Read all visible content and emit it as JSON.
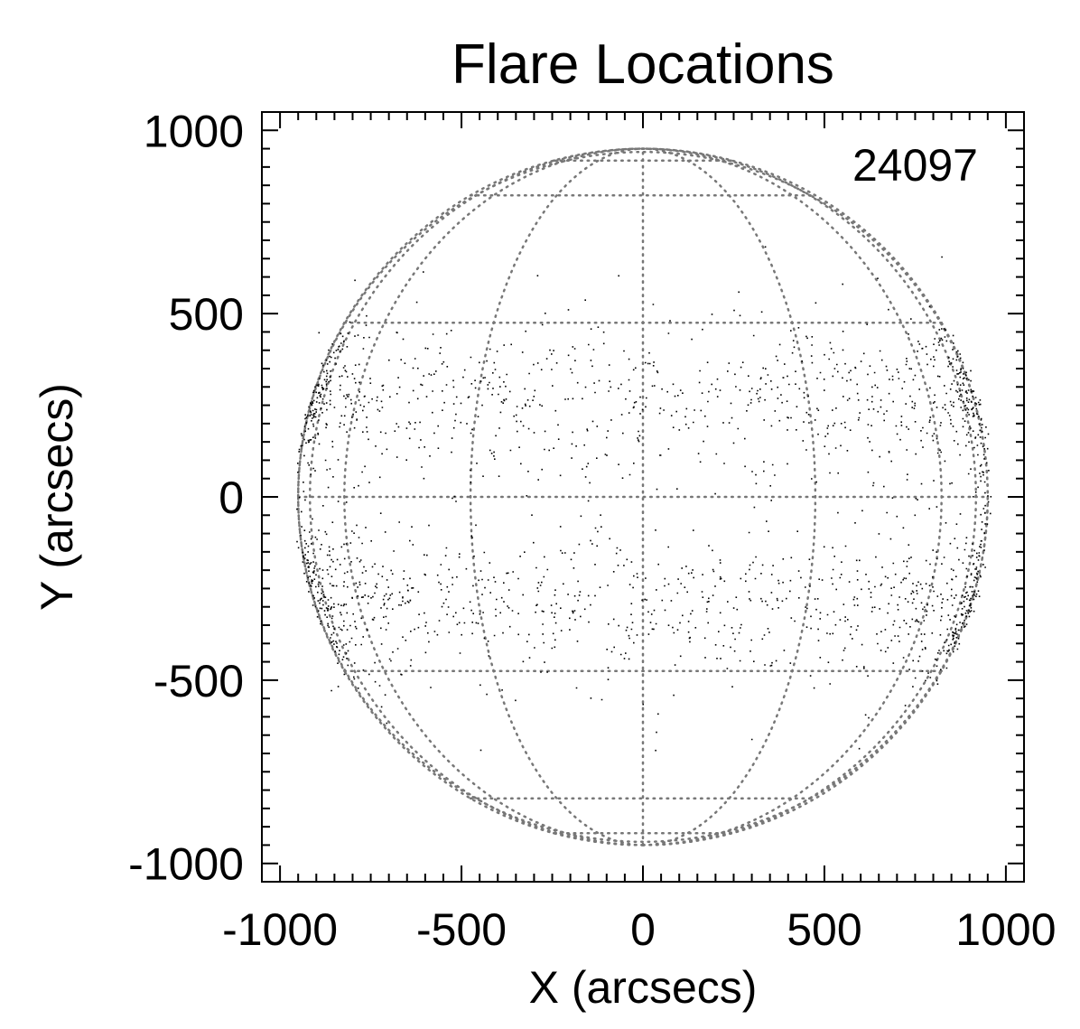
{
  "chart_data": {
    "type": "scatter",
    "title": "Flare Locations",
    "xlabel": "X (arcsecs)",
    "ylabel": "Y (arcsecs)",
    "xlim": [
      -1050,
      1050
    ],
    "ylim": [
      -1050,
      1050
    ],
    "x_ticks": [
      -1000,
      -500,
      0,
      500,
      1000
    ],
    "y_ticks": [
      -1000,
      -500,
      0,
      500,
      1000
    ],
    "x_tick_labels": [
      "-1000",
      "-500",
      "0",
      "500",
      "1000"
    ],
    "y_tick_labels": [
      "-1000",
      "-500",
      "0",
      "500",
      "1000"
    ],
    "annotation": "24097",
    "point_count": 24097,
    "overlay": {
      "type": "heliographic grid",
      "solar_radius_arcsec": 950,
      "latitude_lines_deg": [
        -75,
        -60,
        -30,
        0,
        30,
        60,
        75
      ],
      "longitude_lines_deg": [
        -75,
        -60,
        -30,
        0,
        30,
        60,
        75,
        90,
        -90
      ],
      "style": "dotted grey"
    },
    "distribution": {
      "description_bands": [
        {
          "y_center": 200,
          "y_spread": 150
        },
        {
          "y_center": -200,
          "y_spread": 150
        }
      ],
      "x_range": [
        -980,
        980
      ],
      "limb_concentration": true
    },
    "grid": false,
    "legend": "none"
  }
}
